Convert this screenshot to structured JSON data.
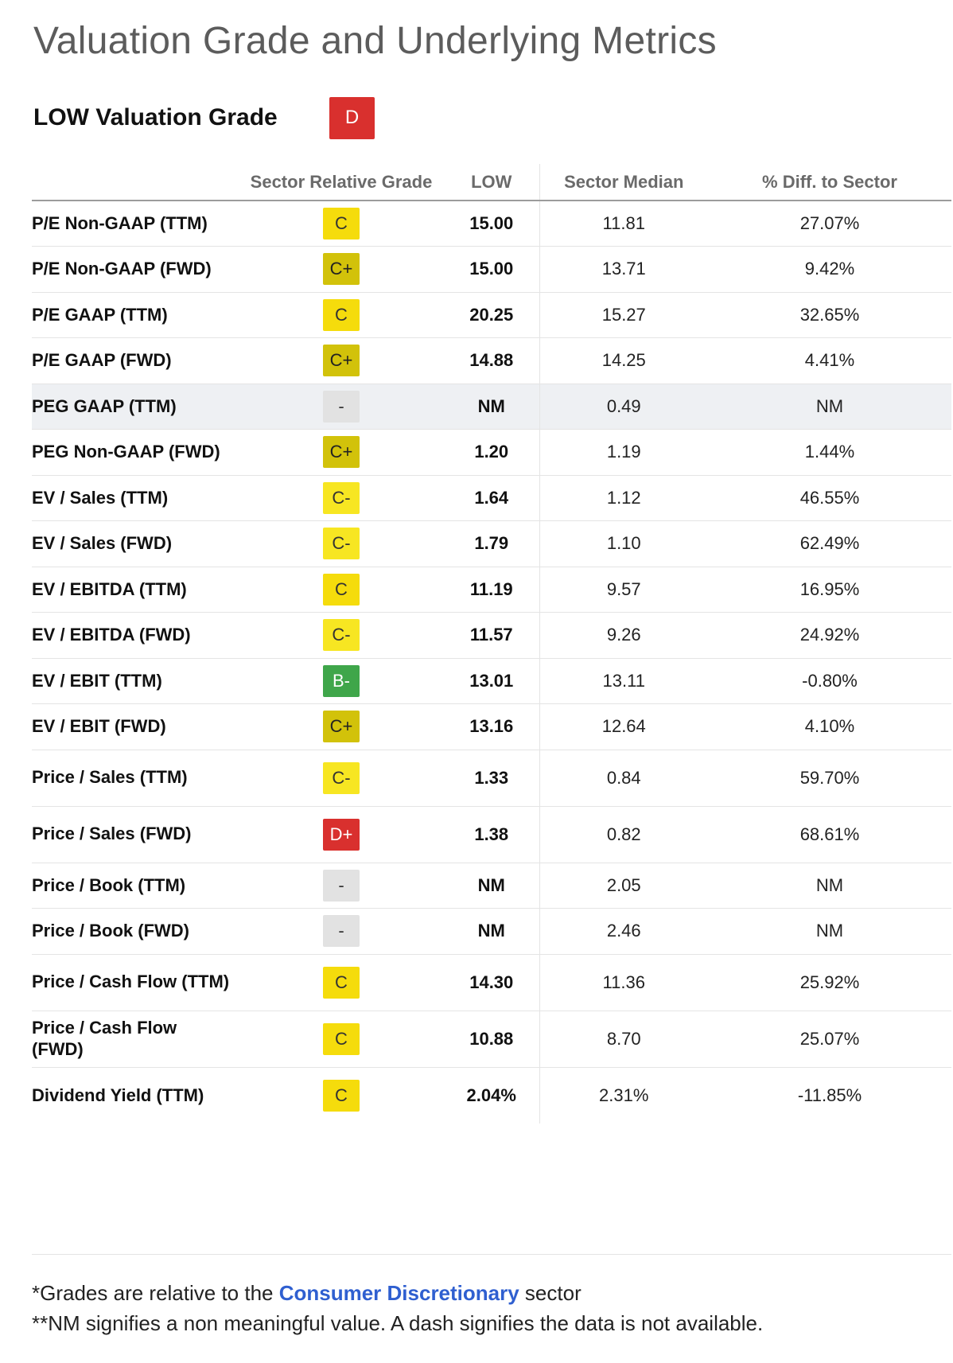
{
  "title": "Valuation Grade and Underlying Metrics",
  "grade_header": {
    "label": "LOW Valuation Grade",
    "grade": "D",
    "grade_color": "#d9302e"
  },
  "columns": {
    "metric": "",
    "grade": "Sector Relative Grade",
    "low": "LOW",
    "median": "Sector Median",
    "diff": "% Diff. to Sector"
  },
  "grade_colors": {
    "C": "#f5dc0c",
    "C+": "#d2c20a",
    "C-": "#f7e622",
    "B-": "#3fa64a",
    "D+": "#d9302e",
    "-": "#e2e2e2"
  },
  "badge_text_colors": {
    "C": "#333333",
    "C+": "#222222",
    "C-": "#333333",
    "B-": "#ffffff",
    "D+": "#ffffff",
    "-": "#333333"
  },
  "rows": [
    {
      "metric": "P/E Non-GAAP (TTM)",
      "grade": "C",
      "low": "15.00",
      "median": "11.81",
      "diff": "27.07%"
    },
    {
      "metric": "P/E Non-GAAP (FWD)",
      "grade": "C+",
      "low": "15.00",
      "median": "13.71",
      "diff": "9.42%"
    },
    {
      "metric": "P/E GAAP (TTM)",
      "grade": "C",
      "low": "20.25",
      "median": "15.27",
      "diff": "32.65%"
    },
    {
      "metric": "P/E GAAP (FWD)",
      "grade": "C+",
      "low": "14.88",
      "median": "14.25",
      "diff": "4.41%"
    },
    {
      "metric": "PEG GAAP (TTM)",
      "grade": "-",
      "low": "NM",
      "median": "0.49",
      "diff": "NM",
      "highlighted": true
    },
    {
      "metric": "PEG Non-GAAP (FWD)",
      "grade": "C+",
      "low": "1.20",
      "median": "1.19",
      "diff": "1.44%"
    },
    {
      "metric": "EV / Sales (TTM)",
      "grade": "C-",
      "low": "1.64",
      "median": "1.12",
      "diff": "46.55%"
    },
    {
      "metric": "EV / Sales (FWD)",
      "grade": "C-",
      "low": "1.79",
      "median": "1.10",
      "diff": "62.49%"
    },
    {
      "metric": "EV / EBITDA (TTM)",
      "grade": "C",
      "low": "11.19",
      "median": "9.57",
      "diff": "16.95%"
    },
    {
      "metric": "EV / EBITDA (FWD)",
      "grade": "C-",
      "low": "11.57",
      "median": "9.26",
      "diff": "24.92%"
    },
    {
      "metric": "EV / EBIT (TTM)",
      "grade": "B-",
      "low": "13.01",
      "median": "13.11",
      "diff": "-0.80%"
    },
    {
      "metric": "EV / EBIT (FWD)",
      "grade": "C+",
      "low": "13.16",
      "median": "12.64",
      "diff": "4.10%"
    },
    {
      "metric": "Price / Sales (TTM)",
      "grade": "C-",
      "low": "1.33",
      "median": "0.84",
      "diff": "59.70%"
    },
    {
      "metric": "Price / Sales (FWD)",
      "grade": "D+",
      "low": "1.38",
      "median": "0.82",
      "diff": "68.61%"
    },
    {
      "metric": "Price / Book (TTM)",
      "grade": "-",
      "low": "NM",
      "median": "2.05",
      "diff": "NM"
    },
    {
      "metric": "Price / Book (FWD)",
      "grade": "-",
      "low": "NM",
      "median": "2.46",
      "diff": "NM"
    },
    {
      "metric": "Price / Cash Flow (TTM)",
      "grade": "C",
      "low": "14.30",
      "median": "11.36",
      "diff": "25.92%"
    },
    {
      "metric": "Price / Cash Flow (FWD)",
      "grade": "C",
      "low": "10.88",
      "median": "8.70",
      "diff": "25.07%"
    },
    {
      "metric": "Dividend Yield (TTM)",
      "grade": "C",
      "low": "2.04%",
      "median": "2.31%",
      "diff": "-11.85%"
    }
  ],
  "footnotes": {
    "line1_prefix": "*Grades are relative to the ",
    "sector_link": "Consumer Discretionary",
    "line1_suffix": " sector",
    "line2": "**NM signifies a non meaningful value. A dash signifies the data is not available."
  }
}
